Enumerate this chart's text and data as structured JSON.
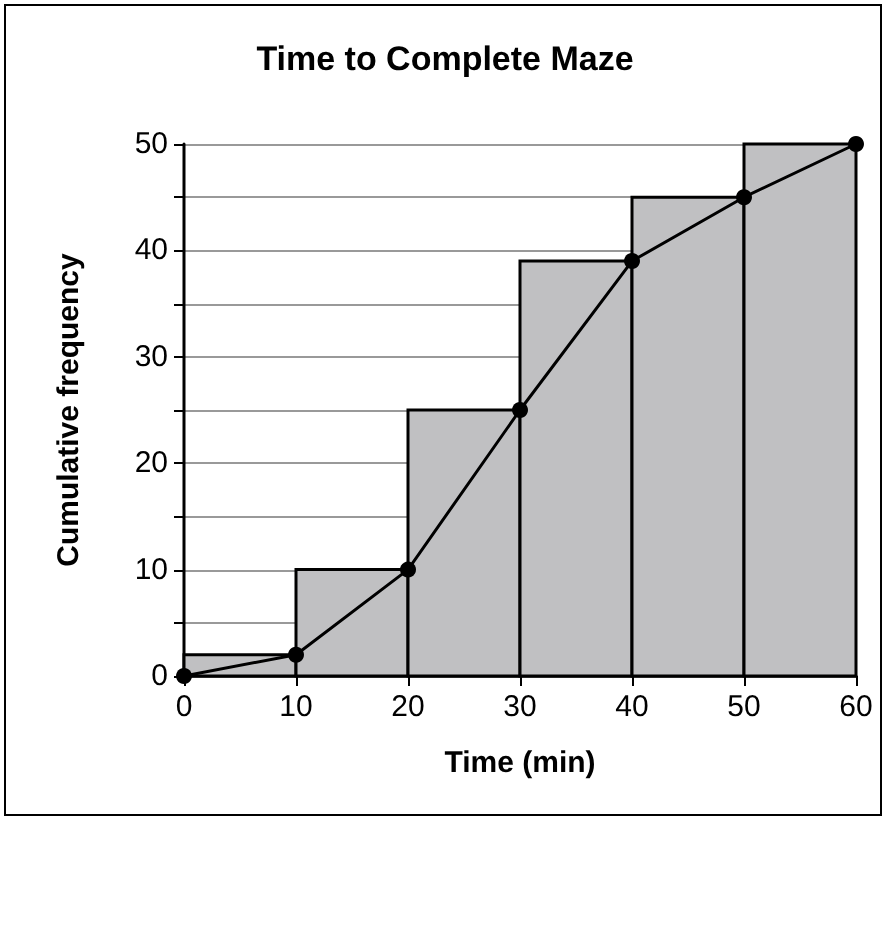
{
  "chart_data": {
    "type": "histogram",
    "title": "Time to Complete Maze",
    "xlabel": "Time (min)",
    "ylabel": "Cumulative frequency",
    "bins": [
      0,
      10,
      20,
      30,
      40,
      50,
      60
    ],
    "series": [
      {
        "color": "#c0c0c2",
        "values": [
          2,
          10,
          25,
          39,
          45,
          50
        ]
      },
      {
        "type": "line",
        "color": "#000000",
        "x": [
          0,
          10,
          20,
          30,
          40,
          50,
          60
        ],
        "values": [
          0,
          2,
          10,
          25,
          39,
          45,
          50
        ]
      }
    ],
    "xlim": [
      0,
      60
    ],
    "xticks": [
      0,
      10,
      20,
      30,
      40,
      50,
      60
    ],
    "ylim": [
      0,
      50
    ],
    "yticks": [
      0,
      {
        "value": 5,
        "label": null
      },
      10,
      {
        "value": 15,
        "label": null
      },
      20,
      {
        "value": 25,
        "label": null
      },
      30,
      {
        "value": 35,
        "label": null
      },
      40,
      {
        "value": 45,
        "label": null
      },
      50
    ],
    "grid": "y",
    "marker": "circle",
    "line_style": "solid"
  }
}
